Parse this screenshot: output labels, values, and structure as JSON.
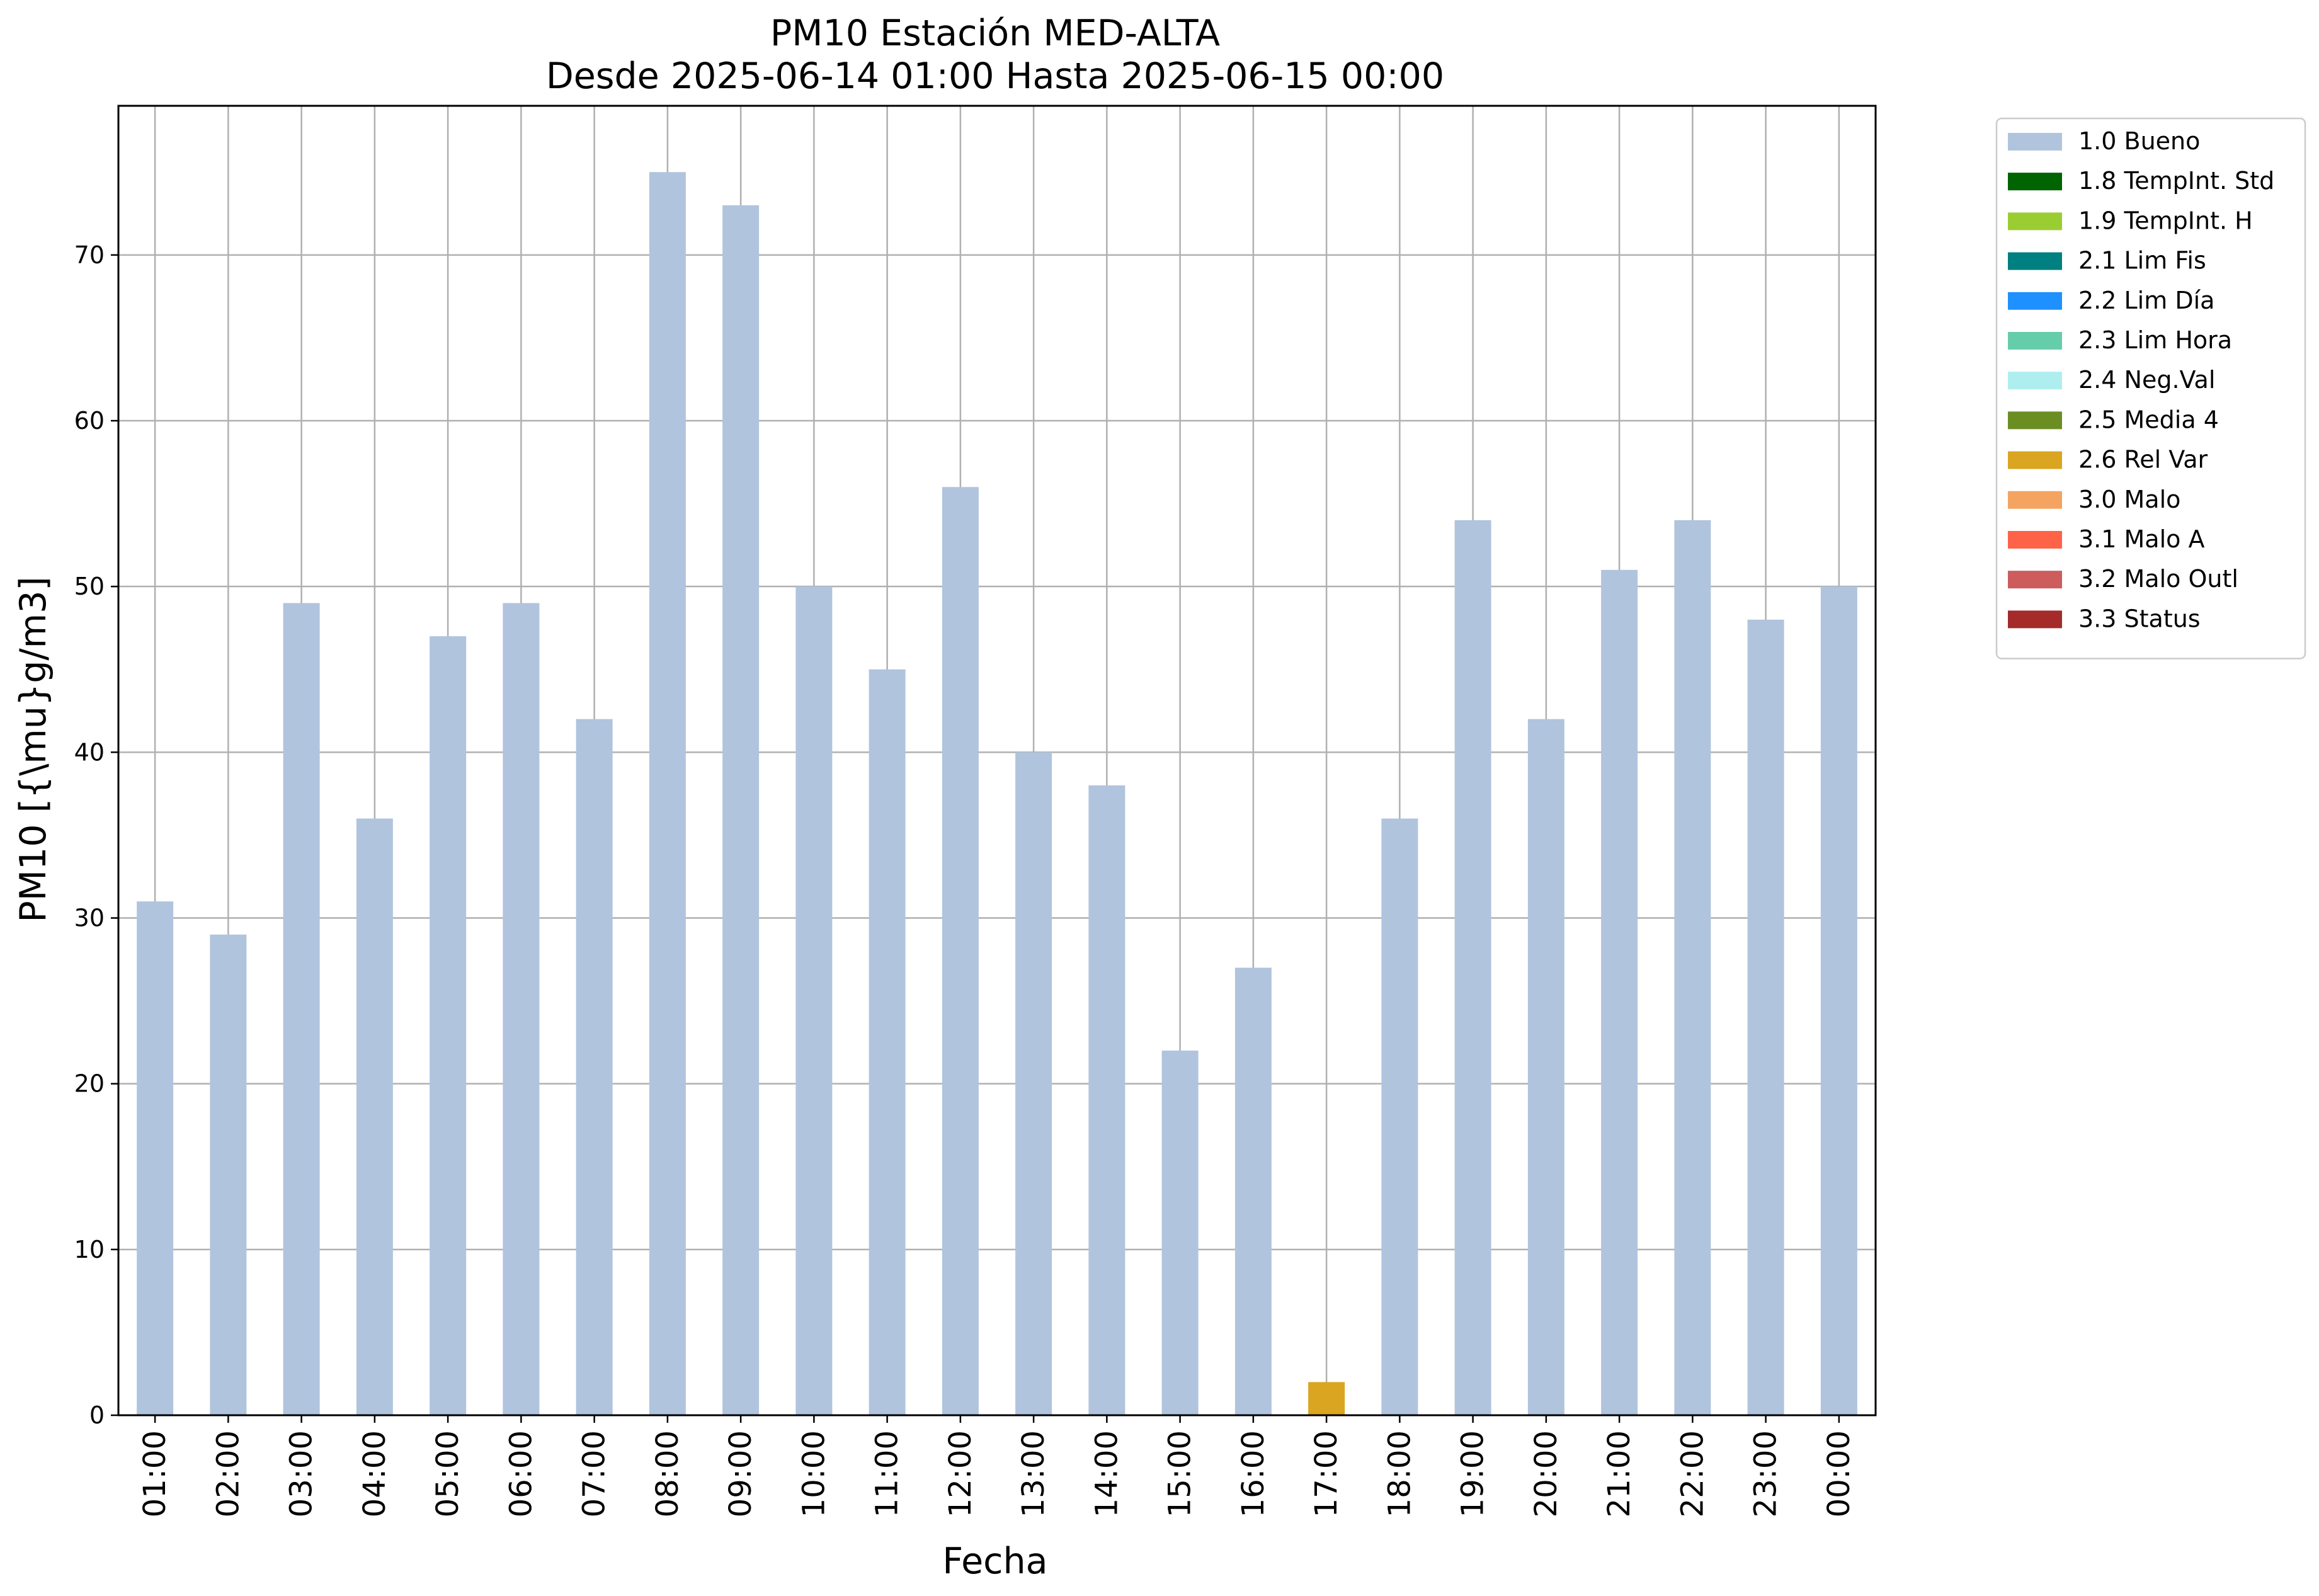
{
  "chart_data": {
    "type": "bar",
    "title": "PM10 Estación MED-ALTA",
    "subtitle": "Desde 2025-06-14 01:00 Hasta 2025-06-15 00:00",
    "xlabel": "Fecha",
    "ylabel": "PM10 [{\\mu}g/m3]",
    "ylim": [
      0,
      79
    ],
    "yticks": [
      0,
      10,
      20,
      30,
      40,
      50,
      60,
      70
    ],
    "grid": true,
    "legend_position": "outside top-right",
    "categories": [
      "01:00",
      "02:00",
      "03:00",
      "04:00",
      "05:00",
      "06:00",
      "07:00",
      "08:00",
      "09:00",
      "10:00",
      "11:00",
      "12:00",
      "13:00",
      "14:00",
      "15:00",
      "16:00",
      "17:00",
      "18:00",
      "19:00",
      "20:00",
      "21:00",
      "22:00",
      "23:00",
      "00:00"
    ],
    "values": [
      31,
      29,
      49,
      36,
      47,
      49,
      42,
      75,
      73,
      50,
      45,
      56,
      40,
      38,
      22,
      27,
      2,
      36,
      54,
      42,
      51,
      54,
      48,
      50
    ],
    "bar_flags": [
      "1.0 Bueno",
      "1.0 Bueno",
      "1.0 Bueno",
      "1.0 Bueno",
      "1.0 Bueno",
      "1.0 Bueno",
      "1.0 Bueno",
      "1.0 Bueno",
      "1.0 Bueno",
      "1.0 Bueno",
      "1.0 Bueno",
      "1.0 Bueno",
      "1.0 Bueno",
      "1.0 Bueno",
      "1.0 Bueno",
      "1.0 Bueno",
      "2.6 Rel Var",
      "1.0 Bueno",
      "1.0 Bueno",
      "1.0 Bueno",
      "1.0 Bueno",
      "1.0 Bueno",
      "1.0 Bueno",
      "1.0 Bueno"
    ],
    "legend": [
      {
        "label": "1.0 Bueno",
        "color": "#b0c4de"
      },
      {
        "label": "1.8 TempInt. Std",
        "color": "#006400"
      },
      {
        "label": "1.9 TempInt. H",
        "color": "#9acd32"
      },
      {
        "label": "2.1 Lim Fis",
        "color": "#008080"
      },
      {
        "label": "2.2 Lim Día",
        "color": "#1e90ff"
      },
      {
        "label": "2.3 Lim Hora",
        "color": "#66cdaa"
      },
      {
        "label": "2.4 Neg.Val",
        "color": "#afeeee"
      },
      {
        "label": "2.5 Media 4",
        "color": "#6b8e23"
      },
      {
        "label": "2.6 Rel Var",
        "color": "#daa520"
      },
      {
        "label": "3.0 Malo",
        "color": "#f4a460"
      },
      {
        "label": "3.1 Malo A",
        "color": "#ff6347"
      },
      {
        "label": "3.2 Malo Outl",
        "color": "#cd5c5c"
      },
      {
        "label": "3.3 Status",
        "color": "#a52a2a"
      }
    ]
  }
}
